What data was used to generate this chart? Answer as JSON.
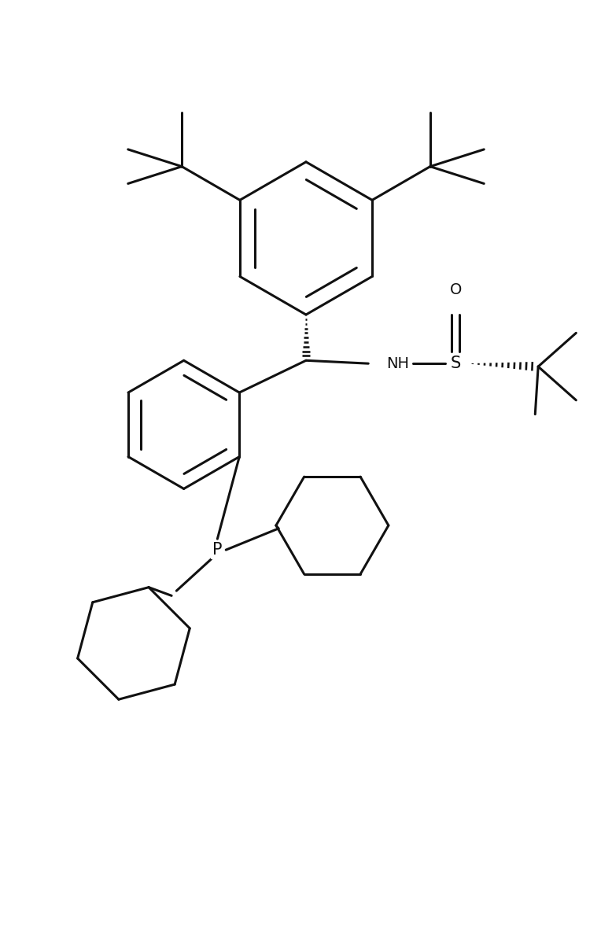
{
  "background_color": "#ffffff",
  "line_color": "#111111",
  "line_width": 2.2,
  "fig_width": 7.78,
  "fig_height": 12.04,
  "dpi": 100,
  "xlim": [
    0,
    10
  ],
  "ylim": [
    0,
    15.5
  ]
}
